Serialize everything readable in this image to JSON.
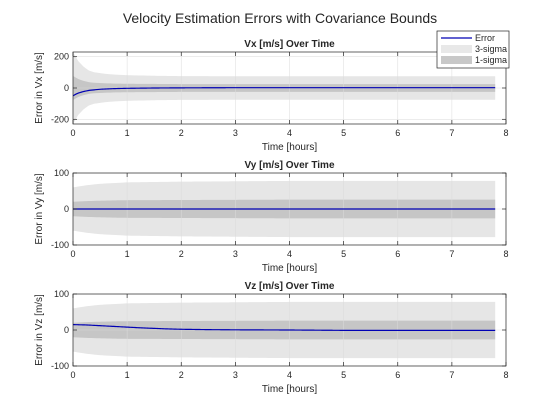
{
  "figure": {
    "title": "Velocity Estimation Errors with Covariance Bounds"
  },
  "legend": {
    "entries": [
      {
        "label": "Error",
        "kind": "line",
        "color": "#0000b4"
      },
      {
        "label": "3-sigma",
        "kind": "patch",
        "color": "#e8e8e8"
      },
      {
        "label": "1-sigma",
        "kind": "patch",
        "color": "#c8c8c8"
      }
    ],
    "placement": "top-right"
  },
  "colors": {
    "error_line": "#0000b4",
    "band_3sigma": "#e6e6e6",
    "band_1sigma": "#c6c6c6",
    "grid": "#dcdcdc",
    "axes": "#262626"
  },
  "chart_data": [
    {
      "type": "line",
      "title": "Vx [m/s] Over Time",
      "xlabel": "Time [hours]",
      "ylabel": "Error in Vx [m/s]",
      "xlim": [
        0,
        8
      ],
      "ylim": [
        -230,
        230
      ],
      "xticks": [
        0,
        1,
        2,
        3,
        4,
        5,
        6,
        7,
        8
      ],
      "yticks": [
        -200,
        0,
        200
      ],
      "grid": true,
      "legend": "top-right",
      "x_end": 7.8,
      "series": [
        {
          "name": "Error",
          "x": [
            0,
            0.05,
            0.1,
            0.2,
            0.3,
            0.5,
            0.75,
            1,
            1.5,
            2,
            3,
            4,
            5,
            6,
            7,
            7.8
          ],
          "y": [
            -50,
            -40,
            -32,
            -22,
            -15,
            -8,
            -4,
            -2,
            0,
            1,
            2,
            2,
            2,
            2,
            2,
            2
          ]
        },
        {
          "name": "3-sigma",
          "x": [
            0,
            0.05,
            0.1,
            0.2,
            0.3,
            0.4,
            0.6,
            0.8,
            1,
            1.5,
            2,
            3,
            4,
            5,
            6,
            7,
            7.8
          ],
          "y": [
            230,
            200,
            170,
            135,
            110,
            100,
            90,
            85,
            82,
            78,
            76,
            75,
            75,
            75,
            75,
            75,
            75
          ]
        },
        {
          "name": "1-sigma",
          "x": [
            0,
            0.05,
            0.1,
            0.2,
            0.3,
            0.4,
            0.6,
            0.8,
            1,
            1.5,
            2,
            3,
            4,
            5,
            6,
            7,
            7.8
          ],
          "y": [
            77,
            67,
            57,
            45,
            37,
            33,
            30,
            28,
            27,
            26,
            25,
            25,
            25,
            25,
            25,
            25,
            25
          ]
        }
      ]
    },
    {
      "type": "line",
      "title": "Vy [m/s] Over Time",
      "xlabel": "Time [hours]",
      "ylabel": "Error in Vy [m/s]",
      "xlim": [
        0,
        8
      ],
      "ylim": [
        -100,
        100
      ],
      "xticks": [
        0,
        1,
        2,
        3,
        4,
        5,
        6,
        7,
        8
      ],
      "yticks": [
        -100,
        0,
        100
      ],
      "grid": true,
      "x_end": 7.8,
      "series": [
        {
          "name": "Error",
          "x": [
            0,
            0.5,
            1,
            2,
            3,
            4,
            5,
            6,
            7,
            7.8
          ],
          "y": [
            0,
            0,
            0,
            0,
            0,
            0,
            0,
            0,
            0,
            0
          ]
        },
        {
          "name": "3-sigma",
          "x": [
            0,
            0.25,
            0.5,
            0.75,
            1,
            2,
            3,
            4,
            5,
            6,
            7,
            7.8
          ],
          "y": [
            60,
            66,
            70,
            72,
            74,
            76,
            77,
            78,
            78,
            78,
            78,
            78
          ]
        },
        {
          "name": "1-sigma",
          "x": [
            0,
            0.25,
            0.5,
            0.75,
            1,
            2,
            3,
            4,
            5,
            6,
            7,
            7.8
          ],
          "y": [
            20,
            22,
            23,
            24,
            24.5,
            25,
            25.5,
            26,
            26,
            26,
            26,
            26
          ]
        }
      ]
    },
    {
      "type": "line",
      "title": "Vz [m/s] Over Time",
      "xlabel": "Time [hours]",
      "ylabel": "Error in Vz [m/s]",
      "xlim": [
        0,
        8
      ],
      "ylim": [
        -100,
        100
      ],
      "xticks": [
        0,
        1,
        2,
        3,
        4,
        5,
        6,
        7,
        8
      ],
      "yticks": [
        -100,
        0,
        100
      ],
      "grid": true,
      "x_end": 7.8,
      "series": [
        {
          "name": "Error",
          "x": [
            0,
            0.25,
            0.5,
            0.75,
            1,
            1.25,
            1.5,
            1.75,
            2,
            2.5,
            3,
            4,
            5,
            6,
            7,
            7.8
          ],
          "y": [
            15,
            14,
            12,
            10,
            8,
            6,
            4.5,
            3,
            2,
            1,
            0.5,
            0,
            -1,
            -1,
            -1,
            -1
          ]
        },
        {
          "name": "3-sigma",
          "x": [
            0,
            0.25,
            0.5,
            0.75,
            1,
            2,
            3,
            4,
            5,
            6,
            7,
            7.8
          ],
          "y": [
            60,
            66,
            70,
            72,
            74,
            76,
            77,
            78,
            78,
            78,
            78,
            78
          ]
        },
        {
          "name": "1-sigma",
          "x": [
            0,
            0.25,
            0.5,
            0.75,
            1,
            2,
            3,
            4,
            5,
            6,
            7,
            7.8
          ],
          "y": [
            20,
            22,
            23,
            24,
            24.5,
            25,
            25.5,
            26,
            26,
            26,
            26,
            26
          ]
        }
      ]
    }
  ]
}
